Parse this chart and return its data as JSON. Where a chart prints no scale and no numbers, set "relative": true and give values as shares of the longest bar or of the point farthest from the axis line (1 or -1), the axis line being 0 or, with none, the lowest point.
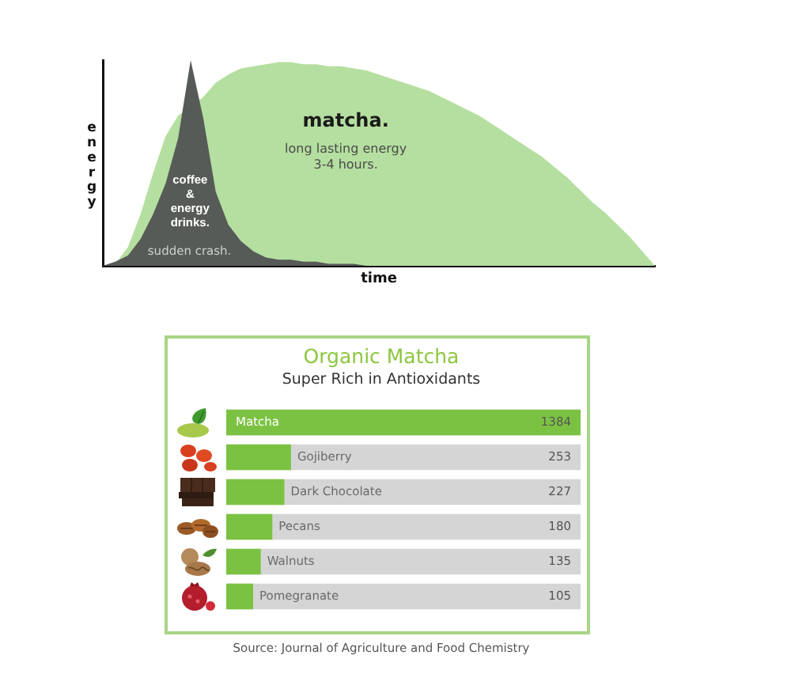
{
  "chart_data": [
    {
      "type": "area",
      "relative": true,
      "xlabel": "time",
      "ylabel": "energy",
      "tick_labels": false,
      "categories": [
        null,
        null,
        null,
        null,
        null,
        null,
        null,
        null,
        null,
        null,
        null,
        null,
        null,
        null,
        null,
        null,
        null,
        null,
        null,
        null,
        null,
        null,
        null,
        null,
        null,
        null,
        null,
        null,
        null,
        null,
        null,
        null,
        null,
        null,
        null,
        null,
        null,
        null,
        null,
        null,
        null,
        null,
        null,
        null,
        null
      ],
      "series": [
        {
          "name": "coffee & energy drinks.",
          "color": "#575b57",
          "values": [
            0,
            0.02,
            0.05,
            0.13,
            0.25,
            0.4,
            0.62,
            1,
            0.72,
            0.36,
            0.2,
            0.12,
            0.07,
            0.04,
            0.03,
            0.03,
            0.02,
            0.02,
            0.01,
            0.01,
            0.01,
            0,
            0,
            0,
            0,
            0,
            0,
            0,
            0,
            0,
            0,
            0,
            0,
            0,
            0,
            0,
            0,
            0,
            0,
            0,
            0,
            0,
            0,
            0,
            0
          ]
        },
        {
          "name": "matcha.",
          "color": "#b5dfa0",
          "values": [
            0,
            0.01,
            0.09,
            0.25,
            0.45,
            0.63,
            0.73,
            null,
            0.82,
            0.89,
            0.93,
            0.96,
            0.97,
            0.98,
            0.99,
            0.99,
            0.98,
            0.98,
            0.97,
            0.97,
            0.96,
            0.95,
            0.93,
            0.91,
            0.89,
            0.87,
            0.85,
            0.82,
            0.79,
            0.76,
            0.73,
            0.69,
            0.65,
            0.61,
            0.57,
            0.53,
            0.48,
            0.43,
            0.37,
            0.31,
            0.26,
            0.2,
            0.14,
            0.07,
            0
          ]
        }
      ],
      "annotations": [
        "long lasting energy 3-4 hours.",
        "sudden crash."
      ]
    },
    {
      "type": "bar",
      "orientation": "horizontal",
      "title": "Organic Matcha",
      "subtitle": "Super Rich in Antioxidants",
      "categories": [
        "Matcha",
        "Gojiberry",
        "Dark Chocolate",
        "Pecans",
        "Walnuts",
        "Pomegranate"
      ],
      "values": [
        1384,
        253,
        227,
        180,
        135,
        105
      ],
      "color": "#7cc242",
      "data_labels": true,
      "annotations": [
        "Source: Journal of Agriculture and Food Chemistry"
      ]
    }
  ]
}
